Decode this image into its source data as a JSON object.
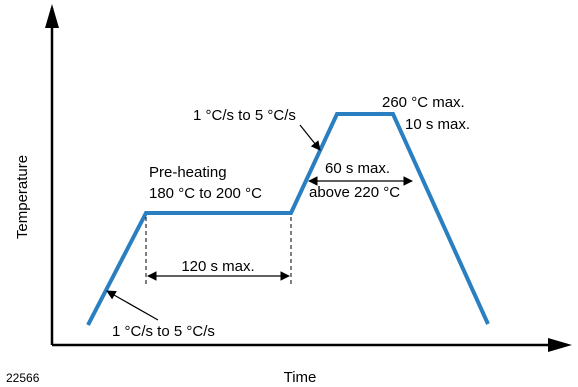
{
  "figure_id": "22566",
  "axes": {
    "x_label": "Time",
    "y_label": "Temperature"
  },
  "annotations": {
    "ramp_up_1": "1 °C/s to 5 °C/s",
    "preheat_title": "Pre-heating",
    "preheat_range": "180 °C to 200 °C",
    "preheat_duration": "120 s max.",
    "ramp_up_2": "1 °C/s to 5 °C/s",
    "peak_temp": "260 °C max.",
    "peak_time": "10 s max.",
    "above_duration": "60 s max.",
    "above_temp": "above 220 °C"
  },
  "colors": {
    "profile": "#2a7fc1",
    "axis": "#000000"
  }
}
